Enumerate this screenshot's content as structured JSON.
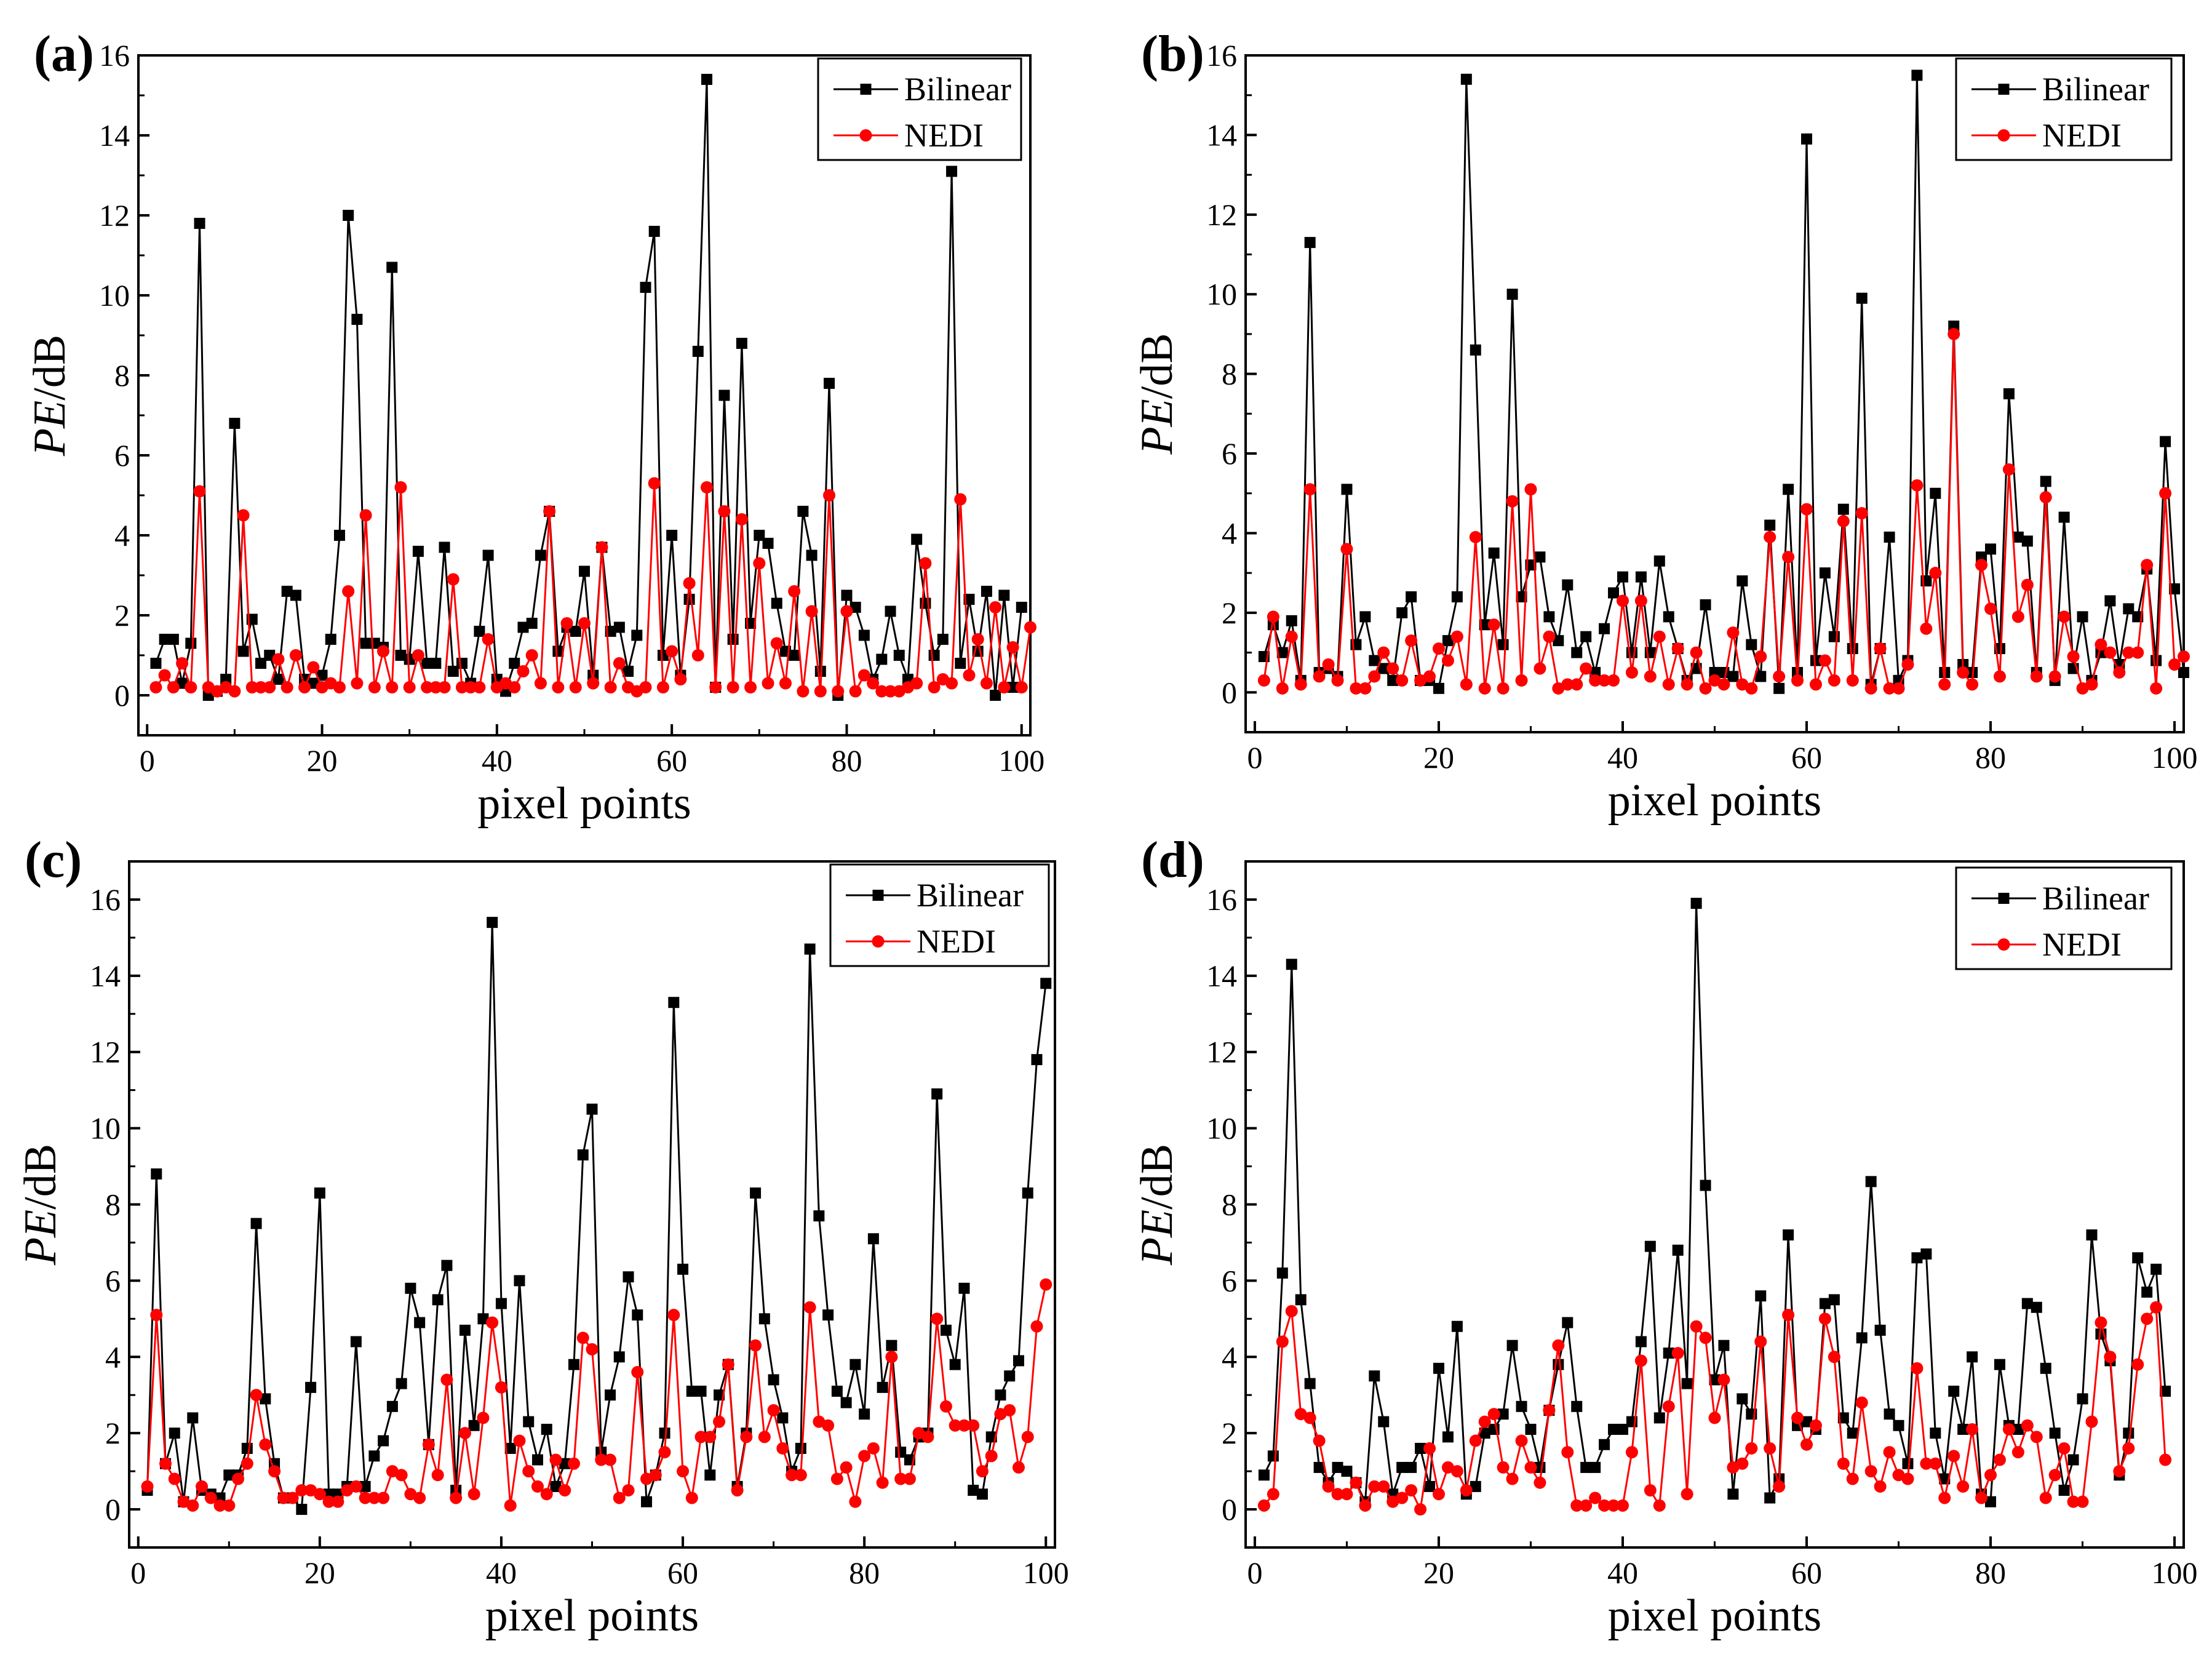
{
  "figure": {
    "series_names": [
      "Bilinear",
      "NEDI"
    ],
    "colors": {
      "Bilinear": "#000000",
      "NEDI": "#ff0000",
      "axis": "#000000",
      "background": "#ffffff"
    }
  },
  "chart_data": [
    {
      "panel": "(a)",
      "type": "line",
      "xlabel": "pixel points",
      "ylabel_italic": "PE",
      "ylabel_unit": "/dB",
      "xlim": [
        -1,
        101
      ],
      "ylim": [
        -1,
        16
      ],
      "xticks": [
        0,
        20,
        40,
        60,
        80,
        100
      ],
      "yticks": [
        0,
        2,
        4,
        6,
        8,
        10,
        12,
        14,
        16
      ],
      "legend": [
        "Bilinear",
        "NEDI"
      ],
      "legend_position": "top-right",
      "series": [
        {
          "name": "Bilinear",
          "marker": "square",
          "values": [
            0.8,
            1.4,
            1.4,
            0.3,
            1.3,
            11.8,
            0.0,
            0.1,
            0.4,
            6.8,
            1.1,
            1.9,
            0.8,
            1.0,
            0.4,
            2.6,
            2.5,
            0.4,
            0.3,
            0.5,
            1.4,
            4.0,
            12.0,
            9.4,
            1.3,
            1.3,
            1.2,
            10.7,
            1.0,
            0.9,
            3.6,
            0.8,
            0.8,
            3.7,
            0.6,
            0.8,
            0.3,
            1.6,
            3.5,
            0.4,
            0.1,
            0.8,
            1.7,
            1.8,
            3.5,
            4.6,
            1.1,
            1.7,
            1.6,
            3.1,
            0.5,
            3.7,
            1.6,
            1.7,
            0.6,
            1.5,
            10.2,
            11.6,
            1.0,
            4.0,
            0.5,
            2.4,
            8.6,
            15.4,
            0.2,
            7.5,
            1.4,
            8.8,
            1.8,
            4.0,
            3.8,
            2.3,
            1.1,
            1.0,
            4.6,
            3.5,
            0.6,
            7.8,
            0.0,
            2.5,
            2.2,
            1.5,
            0.4,
            0.9,
            2.1,
            1.0,
            0.4,
            3.9,
            2.3,
            1.0,
            1.4,
            13.1,
            0.8,
            2.4,
            1.1,
            2.6,
            0.0,
            2.5,
            0.2,
            2.2
          ]
        },
        {
          "name": "NEDI",
          "marker": "circle",
          "values": [
            0.2,
            0.5,
            0.2,
            0.8,
            0.2,
            5.1,
            0.2,
            0.1,
            0.2,
            0.1,
            4.5,
            0.2,
            0.2,
            0.2,
            0.9,
            0.2,
            1.0,
            0.2,
            0.7,
            0.2,
            0.3,
            0.2,
            2.6,
            0.3,
            4.5,
            0.2,
            1.1,
            0.2,
            5.2,
            0.2,
            1.0,
            0.2,
            0.2,
            0.2,
            2.9,
            0.2,
            0.2,
            0.2,
            1.4,
            0.2,
            0.3,
            0.2,
            0.6,
            1.0,
            0.3,
            4.6,
            0.2,
            1.8,
            0.2,
            1.8,
            0.3,
            3.7,
            0.2,
            0.8,
            0.2,
            0.1,
            0.2,
            5.3,
            0.2,
            1.1,
            0.4,
            2.8,
            1.0,
            5.2,
            0.2,
            4.6,
            0.2,
            4.4,
            0.2,
            3.3,
            0.3,
            1.3,
            0.3,
            2.6,
            0.1,
            2.1,
            0.1,
            5.0,
            0.1,
            2.1,
            0.1,
            0.5,
            0.3,
            0.1,
            0.1,
            0.1,
            0.2,
            0.3,
            3.3,
            0.2,
            0.4,
            0.3,
            4.9,
            0.5,
            1.4,
            0.3,
            2.2,
            0.2,
            1.2,
            0.2,
            1.7
          ]
        }
      ]
    },
    {
      "panel": "(b)",
      "type": "line",
      "xlabel": "pixel points",
      "ylabel_italic": "PE",
      "ylabel_unit": "/dB",
      "xlim": [
        -1,
        101
      ],
      "ylim": [
        -1,
        16
      ],
      "xticks": [
        0,
        20,
        40,
        60,
        80,
        100
      ],
      "yticks": [
        0,
        2,
        4,
        6,
        8,
        10,
        12,
        14,
        16
      ],
      "legend": [
        "Bilinear",
        "NEDI"
      ],
      "legend_position": "top-right",
      "series": [
        {
          "name": "Bilinear",
          "marker": "square",
          "values": [
            0.9,
            1.7,
            1.0,
            1.8,
            0.3,
            11.3,
            0.5,
            0.6,
            0.4,
            5.1,
            1.2,
            1.9,
            0.8,
            0.6,
            0.3,
            2.0,
            2.4,
            0.3,
            0.3,
            0.1,
            1.3,
            2.4,
            15.4,
            8.6,
            1.7,
            3.5,
            1.2,
            10.0,
            2.4,
            3.2,
            3.4,
            1.9,
            1.3,
            2.7,
            1.0,
            1.4,
            0.5,
            1.6,
            2.5,
            2.9,
            1.0,
            2.9,
            1.0,
            3.3,
            1.9,
            1.1,
            0.3,
            0.6,
            2.2,
            0.5,
            0.5,
            0.4,
            2.8,
            1.2,
            0.4,
            4.2,
            0.1,
            5.1,
            0.5,
            13.9,
            0.8,
            3.0,
            1.4,
            4.6,
            1.1,
            9.9,
            0.2,
            1.1,
            3.9,
            0.3,
            0.8,
            15.5,
            2.8,
            5.0,
            0.5,
            9.2,
            0.7,
            0.5,
            3.4,
            3.6,
            1.1,
            7.5,
            3.9,
            3.8,
            0.5,
            5.3,
            0.3,
            4.4,
            0.6,
            1.9,
            0.3,
            1.0,
            2.3,
            0.7,
            2.1,
            1.9,
            3.1,
            0.8,
            6.3,
            2.6,
            0.5
          ]
        },
        {
          "name": "NEDI",
          "marker": "circle",
          "values": [
            0.3,
            1.9,
            0.1,
            1.4,
            0.2,
            5.1,
            0.4,
            0.7,
            0.3,
            3.6,
            0.1,
            0.1,
            0.4,
            1.0,
            0.6,
            0.3,
            1.3,
            0.3,
            0.4,
            1.1,
            0.8,
            1.4,
            0.2,
            3.9,
            0.1,
            1.7,
            0.1,
            4.8,
            0.3,
            5.1,
            0.6,
            1.4,
            0.1,
            0.2,
            0.2,
            0.6,
            0.3,
            0.3,
            0.3,
            2.3,
            0.5,
            2.3,
            0.4,
            1.4,
            0.2,
            1.1,
            0.2,
            1.0,
            0.1,
            0.3,
            0.2,
            1.5,
            0.2,
            0.1,
            0.9,
            3.9,
            0.4,
            3.4,
            0.3,
            4.6,
            0.2,
            0.8,
            0.3,
            4.3,
            0.3,
            4.5,
            0.1,
            1.1,
            0.1,
            0.1,
            0.7,
            5.2,
            1.6,
            3.0,
            0.2,
            9.0,
            0.5,
            0.2,
            3.2,
            2.1,
            0.4,
            5.6,
            1.9,
            2.7,
            0.4,
            4.9,
            0.4,
            1.9,
            0.9,
            0.1,
            0.2,
            1.2,
            1.0,
            0.5,
            1.0,
            1.0,
            3.2,
            0.1,
            5.0,
            0.7,
            0.9
          ]
        }
      ]
    },
    {
      "panel": "(c)",
      "type": "line",
      "xlabel": "pixel points",
      "ylabel_italic": "PE",
      "ylabel_unit": "/dB",
      "xlim": [
        -1,
        101
      ],
      "ylim": [
        -1,
        17
      ],
      "xticks": [
        0,
        20,
        40,
        60,
        80,
        100
      ],
      "yticks": [
        0,
        2,
        4,
        6,
        8,
        10,
        12,
        14,
        16
      ],
      "legend": [
        "Bilinear",
        "NEDI"
      ],
      "legend_position": "top-right",
      "series": [
        {
          "name": "Bilinear",
          "marker": "square",
          "values": [
            0.5,
            8.8,
            1.2,
            2.0,
            0.2,
            2.4,
            0.5,
            0.4,
            0.3,
            0.9,
            0.9,
            1.6,
            7.5,
            2.9,
            1.2,
            0.3,
            0.3,
            0.0,
            3.2,
            8.3,
            0.4,
            0.4,
            0.6,
            4.4,
            0.6,
            1.4,
            1.8,
            2.7,
            3.3,
            5.8,
            4.9,
            1.7,
            5.5,
            6.4,
            0.5,
            4.7,
            2.2,
            5.0,
            15.4,
            5.4,
            1.6,
            6.0,
            2.3,
            1.3,
            2.1,
            0.6,
            1.2,
            3.8,
            9.3,
            10.5,
            1.5,
            3.0,
            4.0,
            6.1,
            5.1,
            0.2,
            0.9,
            2.0,
            13.3,
            6.3,
            3.1,
            3.1,
            0.9,
            3.0,
            3.8,
            0.6,
            2.0,
            8.3,
            5.0,
            3.4,
            2.4,
            1.0,
            1.6,
            14.7,
            7.7,
            5.1,
            3.1,
            2.8,
            3.8,
            2.5,
            7.1,
            3.2,
            4.3,
            1.5,
            1.3,
            1.9,
            2.0,
            10.9,
            4.7,
            3.8,
            5.8,
            0.5,
            0.4,
            1.9,
            3.0,
            3.5,
            3.9,
            8.3,
            11.8,
            13.8
          ]
        },
        {
          "name": "NEDI",
          "marker": "circle",
          "values": [
            0.6,
            5.1,
            1.2,
            0.8,
            0.2,
            0.1,
            0.6,
            0.3,
            0.1,
            0.1,
            0.8,
            1.2,
            3.0,
            1.7,
            1.0,
            0.3,
            0.3,
            0.5,
            0.5,
            0.4,
            0.2,
            0.2,
            0.5,
            0.6,
            0.3,
            0.3,
            0.3,
            1.0,
            0.9,
            0.4,
            0.3,
            1.7,
            0.9,
            3.4,
            0.3,
            2.0,
            0.4,
            2.4,
            4.9,
            3.2,
            0.1,
            1.8,
            1.0,
            0.6,
            0.4,
            1.3,
            0.5,
            1.2,
            4.5,
            4.2,
            1.3,
            1.3,
            0.3,
            0.5,
            3.6,
            0.8,
            0.9,
            1.5,
            5.1,
            1.0,
            0.3,
            1.9,
            1.9,
            2.3,
            3.8,
            0.5,
            1.9,
            4.3,
            1.9,
            2.6,
            1.6,
            0.9,
            0.9,
            5.3,
            2.3,
            2.2,
            0.8,
            1.1,
            0.2,
            1.4,
            1.6,
            0.7,
            4.0,
            0.8,
            0.8,
            2.0,
            1.9,
            5.0,
            2.7,
            2.2,
            2.2,
            2.2,
            1.0,
            1.4,
            2.5,
            2.6,
            1.1,
            1.9,
            4.8,
            5.9
          ]
        }
      ]
    },
    {
      "panel": "(d)",
      "type": "line",
      "xlabel": "pixel points",
      "ylabel_italic": "PE",
      "ylabel_unit": "/dB",
      "xlim": [
        -1,
        101
      ],
      "ylim": [
        -1,
        17
      ],
      "xticks": [
        0,
        20,
        40,
        60,
        80,
        100
      ],
      "yticks": [
        0,
        2,
        4,
        6,
        8,
        10,
        12,
        14,
        16
      ],
      "legend": [
        "Bilinear",
        "NEDI"
      ],
      "legend_position": "top-right",
      "series": [
        {
          "name": "Bilinear",
          "marker": "square",
          "values": [
            0.9,
            1.4,
            6.2,
            14.3,
            5.5,
            3.3,
            1.1,
            0.7,
            1.1,
            1.0,
            0.7,
            0.2,
            3.5,
            2.3,
            0.4,
            1.1,
            1.1,
            1.6,
            0.6,
            3.7,
            1.9,
            4.8,
            0.4,
            0.6,
            2.0,
            2.1,
            2.5,
            4.3,
            2.7,
            2.1,
            1.1,
            2.6,
            3.8,
            4.9,
            2.7,
            1.1,
            1.1,
            1.7,
            2.1,
            2.1,
            2.3,
            4.4,
            6.9,
            2.4,
            4.1,
            6.8,
            3.3,
            15.9,
            8.5,
            3.4,
            4.3,
            0.4,
            2.9,
            2.5,
            5.6,
            0.3,
            0.8,
            7.2,
            2.2,
            2.3,
            2.1,
            5.4,
            5.5,
            2.4,
            2.0,
            4.5,
            8.6,
            4.7,
            2.5,
            2.2,
            1.2,
            6.6,
            6.7,
            2.0,
            0.8,
            3.1,
            2.1,
            4.0,
            0.4,
            0.2,
            3.8,
            2.2,
            2.1,
            5.4,
            5.3,
            3.7,
            2.0,
            0.5,
            1.3,
            2.9,
            7.2,
            4.6,
            3.9,
            0.9,
            2.0,
            6.6,
            5.7,
            6.3,
            3.1
          ]
        },
        {
          "name": "NEDI",
          "marker": "circle",
          "values": [
            0.1,
            0.4,
            4.4,
            5.2,
            2.5,
            2.4,
            1.8,
            0.6,
            0.4,
            0.4,
            0.7,
            0.1,
            0.6,
            0.6,
            0.2,
            0.3,
            0.5,
            0.0,
            1.6,
            0.4,
            1.1,
            1.0,
            0.5,
            1.8,
            2.3,
            2.5,
            1.1,
            0.8,
            1.8,
            1.1,
            0.7,
            2.6,
            4.3,
            1.5,
            0.1,
            0.1,
            0.3,
            0.1,
            0.1,
            0.1,
            1.5,
            3.9,
            0.5,
            0.1,
            2.7,
            4.1,
            0.4,
            4.8,
            4.5,
            2.4,
            3.4,
            1.1,
            1.2,
            1.6,
            4.4,
            1.6,
            0.6,
            5.1,
            2.4,
            1.7,
            2.2,
            5.0,
            4.0,
            1.2,
            0.8,
            2.8,
            1.0,
            0.6,
            1.5,
            0.9,
            0.8,
            3.7,
            1.2,
            1.2,
            0.3,
            1.4,
            0.6,
            2.1,
            0.3,
            0.9,
            1.3,
            2.1,
            1.5,
            2.2,
            1.9,
            0.3,
            0.9,
            1.6,
            0.2,
            0.2,
            2.3,
            4.9,
            4.0,
            1.0,
            1.6,
            3.8,
            5.0,
            5.3,
            1.3
          ]
        }
      ]
    }
  ]
}
